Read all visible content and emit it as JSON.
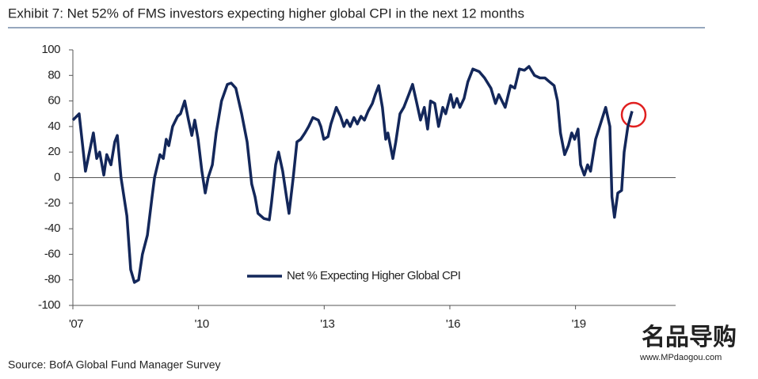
{
  "chart_data": {
    "type": "line",
    "title": "Exhibit 7: Net 52% of FMS investors expecting higher global CPI in the next 12 months",
    "source": "Source: BofA Global Fund Manager Survey",
    "watermark": {
      "logo": "名品导购",
      "url": "www.MPdaogou.com"
    },
    "xlim": [
      2007,
      2021.39
    ],
    "xticks": [
      {
        "value": 2007,
        "label": "'07"
      },
      {
        "value": 2010,
        "label": "'10"
      },
      {
        "value": 2013,
        "label": "'13"
      },
      {
        "value": 2016,
        "label": "'16"
      },
      {
        "value": 2019,
        "label": "'19"
      }
    ],
    "ylim": [
      -100,
      100
    ],
    "yticks": [
      -100,
      -80,
      -60,
      -40,
      -20,
      0,
      20,
      40,
      60,
      80,
      100
    ],
    "legend": "middle",
    "series": [
      {
        "name": "Net % Expecting Higher Global CPI",
        "color": "#13275a",
        "x": [
          2007.0,
          2007.15,
          2007.3,
          2007.49,
          2007.57,
          2007.64,
          2007.74,
          2007.81,
          2007.91,
          2008.0,
          2008.06,
          2008.15,
          2008.29,
          2008.38,
          2008.47,
          2008.57,
          2008.66,
          2008.78,
          2008.89,
          2008.95,
          2009.08,
          2009.16,
          2009.23,
          2009.29,
          2009.38,
          2009.5,
          2009.57,
          2009.67,
          2009.76,
          2009.84,
          2009.91,
          2009.99,
          2010.08,
          2010.16,
          2010.23,
          2010.33,
          2010.42,
          2010.55,
          2010.69,
          2010.78,
          2010.89,
          2011.03,
          2011.16,
          2011.27,
          2011.35,
          2011.42,
          2011.56,
          2011.69,
          2011.74,
          2011.84,
          2011.91,
          2012.01,
          2012.1,
          2012.16,
          2012.26,
          2012.35,
          2012.44,
          2012.54,
          2012.63,
          2012.73,
          2012.86,
          2012.92,
          2012.99,
          2013.09,
          2013.16,
          2013.29,
          2013.39,
          2013.47,
          2013.54,
          2013.62,
          2013.71,
          2013.79,
          2013.88,
          2013.96,
          2014.05,
          2014.15,
          2014.22,
          2014.3,
          2014.39,
          2014.47,
          2014.52,
          2014.64,
          2014.71,
          2014.81,
          2014.9,
          2015.02,
          2015.11,
          2015.2,
          2015.3,
          2015.39,
          2015.47,
          2015.54,
          2015.64,
          2015.73,
          2015.83,
          2015.9,
          2016.02,
          2016.09,
          2016.17,
          2016.24,
          2016.34,
          2016.43,
          2016.55,
          2016.7,
          2016.83,
          2016.98,
          2017.09,
          2017.17,
          2017.32,
          2017.45,
          2017.55,
          2017.66,
          2017.78,
          2017.89,
          2018.02,
          2018.15,
          2018.27,
          2018.38,
          2018.49,
          2018.57,
          2018.64,
          2018.74,
          2018.83,
          2018.91,
          2018.98,
          2019.06,
          2019.12,
          2019.21,
          2019.29,
          2019.36,
          2019.48,
          2019.72,
          2019.82,
          2019.87,
          2019.93,
          2020.01,
          2020.1,
          2020.16,
          2020.25,
          2020.35
        ],
        "values": [
          45,
          50,
          5,
          35,
          15,
          20,
          2,
          18,
          10,
          28,
          33,
          0,
          -30,
          -72,
          -82,
          -80,
          -60,
          -45,
          -15,
          0,
          18,
          15,
          30,
          25,
          40,
          48,
          50,
          60,
          45,
          33,
          45,
          30,
          5,
          -12,
          0,
          10,
          35,
          60,
          73,
          74,
          70,
          50,
          28,
          -5,
          -15,
          -28,
          -32,
          -33,
          -20,
          10,
          20,
          5,
          -15,
          -28,
          0,
          28,
          30,
          35,
          40,
          47,
          45,
          40,
          30,
          32,
          42,
          55,
          48,
          40,
          45,
          40,
          47,
          42,
          48,
          45,
          52,
          58,
          65,
          72,
          55,
          30,
          35,
          15,
          28,
          50,
          55,
          65,
          73,
          60,
          45,
          55,
          38,
          60,
          58,
          40,
          55,
          50,
          65,
          55,
          62,
          55,
          62,
          75,
          85,
          83,
          78,
          70,
          58,
          65,
          55,
          72,
          70,
          85,
          84,
          87,
          80,
          78,
          78,
          75,
          72,
          60,
          35,
          18,
          25,
          35,
          30,
          38,
          10,
          2,
          10,
          5,
          30,
          55,
          40,
          -15,
          -31,
          -12,
          -10,
          20,
          40,
          52
        ]
      }
    ]
  }
}
